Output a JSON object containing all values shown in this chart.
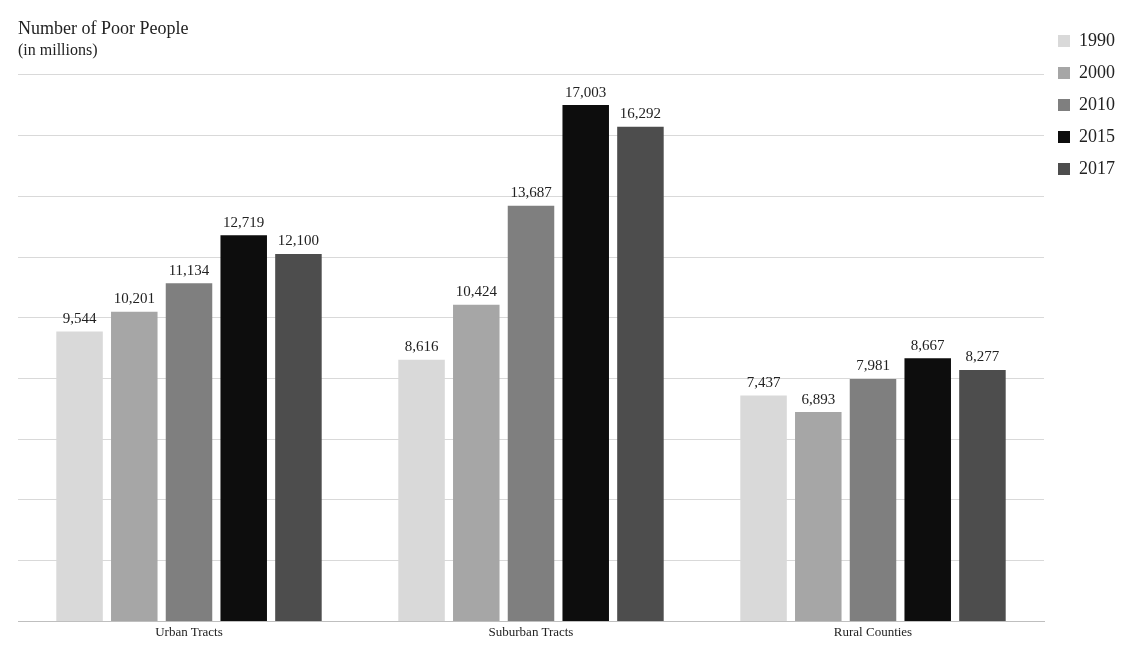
{
  "chart_data": {
    "type": "bar",
    "title": "Number of Poor People",
    "subtitle": "(in millions)",
    "categories": [
      "Urban Tracts",
      "Suburban Tracts",
      "Rural Counties"
    ],
    "series": [
      {
        "name": "1990",
        "color": "#d9d9d9",
        "values": [
          9544,
          8616,
          7437
        ],
        "value_labels": [
          "9,544",
          "8,616",
          "7,437"
        ]
      },
      {
        "name": "2000",
        "color": "#a6a6a6",
        "values": [
          10201,
          10424,
          6893
        ],
        "value_labels": [
          "10,201",
          "10,424",
          "6,893"
        ]
      },
      {
        "name": "2010",
        "color": "#7f7f7f",
        "values": [
          11134,
          13687,
          7981
        ],
        "value_labels": [
          "11,134",
          "13,687",
          "7,981"
        ]
      },
      {
        "name": "2015",
        "color": "#0d0d0d",
        "values": [
          12719,
          17003,
          8667
        ],
        "value_labels": [
          "12,719",
          "17,003",
          "8,667"
        ]
      },
      {
        "name": "2017",
        "color": "#4d4d4d",
        "values": [
          12100,
          16292,
          8277
        ],
        "value_labels": [
          "12,100",
          "16,292",
          "8,277"
        ]
      }
    ],
    "grid": "y",
    "tick_labels": "x",
    "legend": "top right"
  }
}
